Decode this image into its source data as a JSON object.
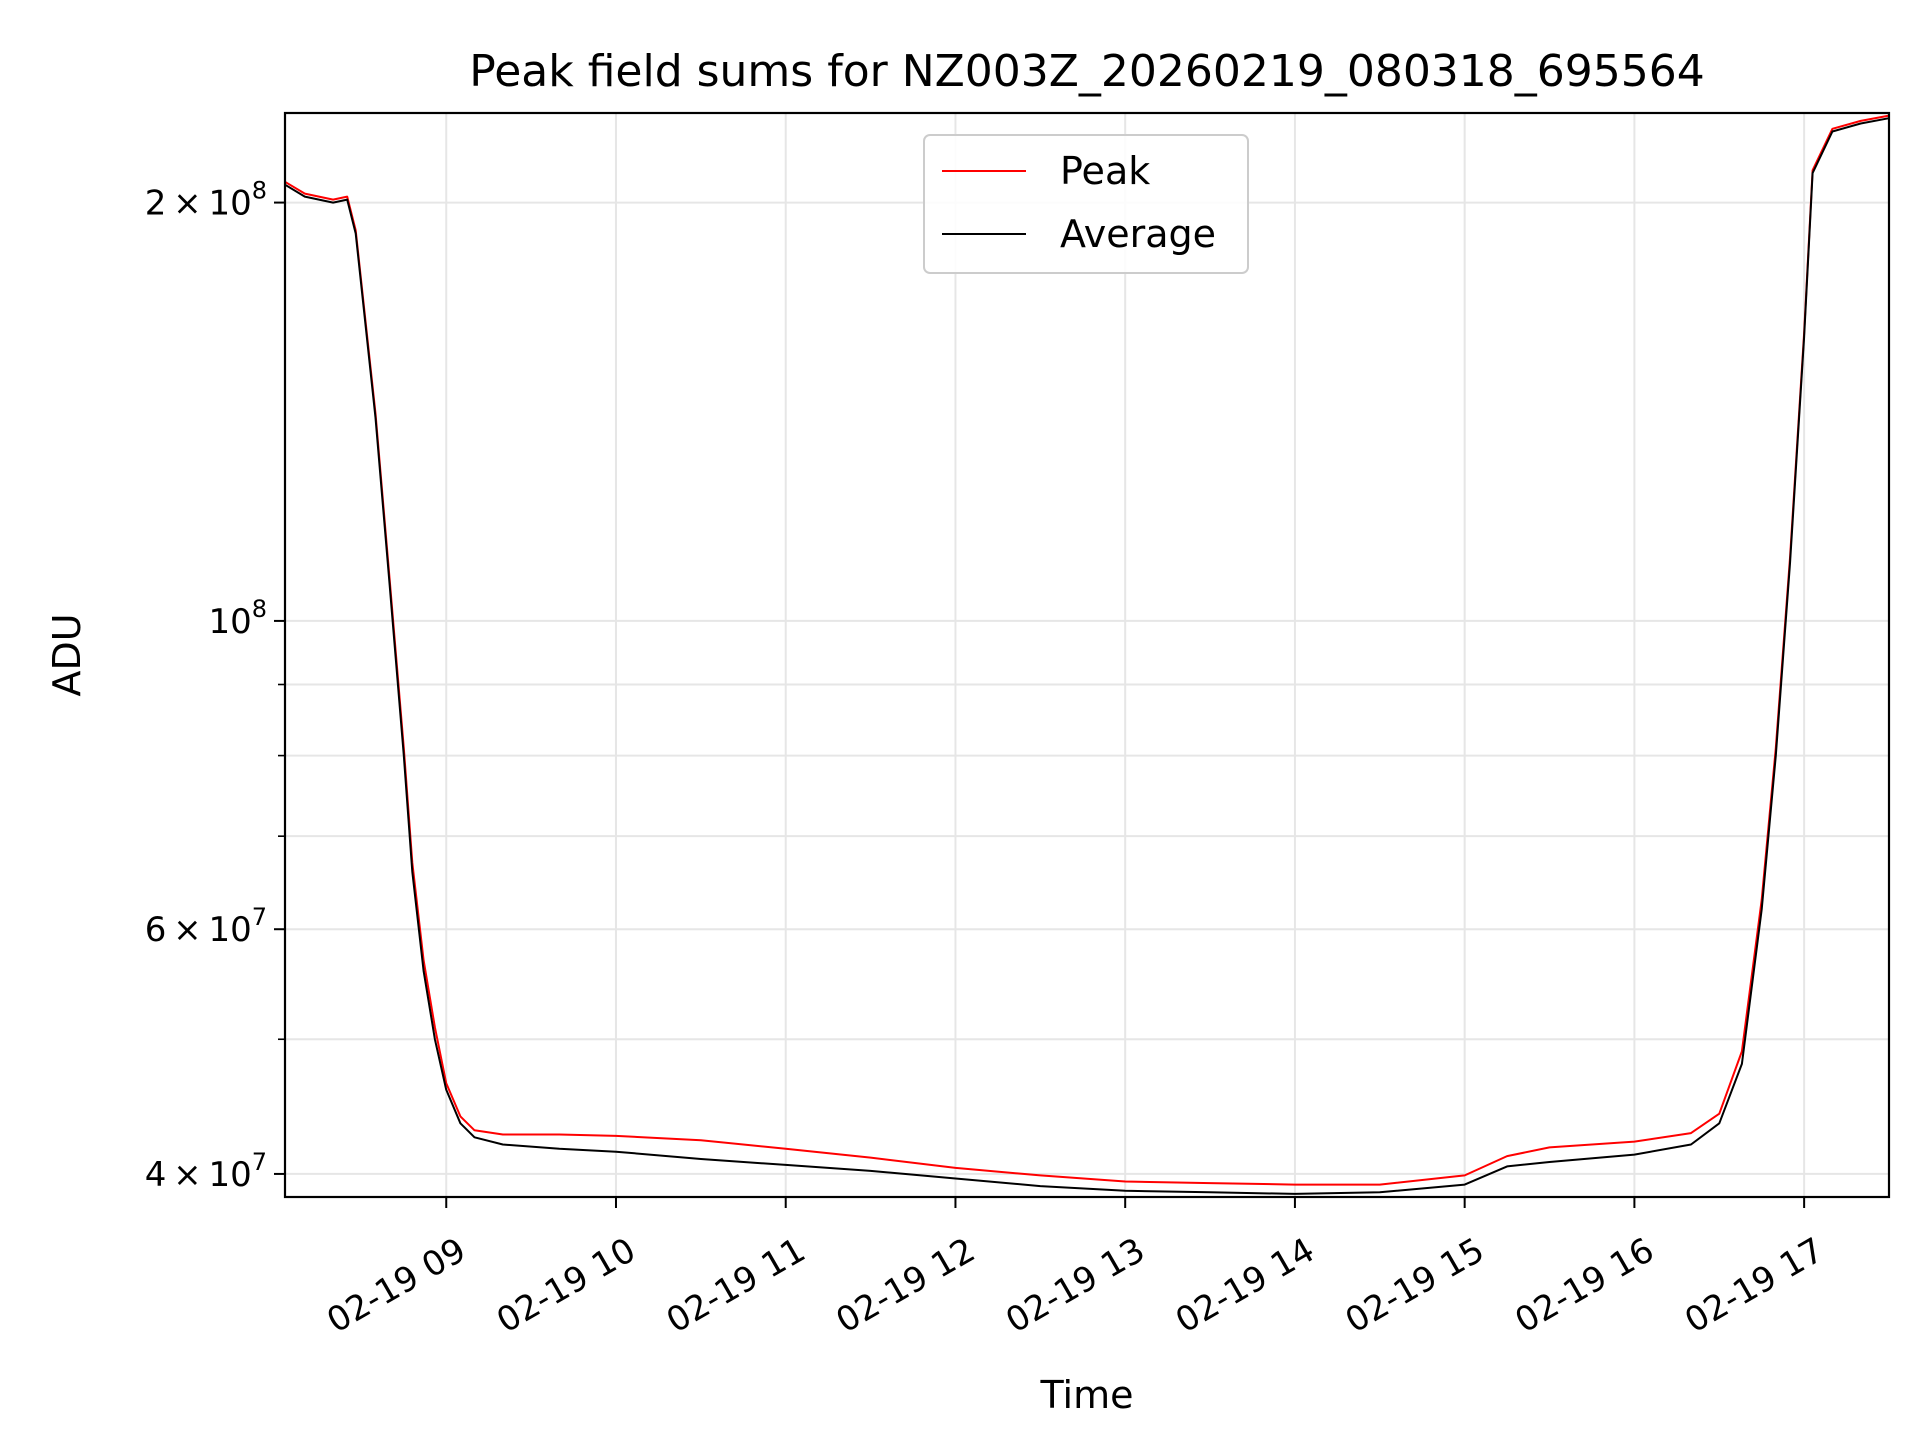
{
  "chart_data": {
    "type": "line",
    "title": "Peak field sums for NZ003Z_20260219_080318_695564",
    "xlabel": "Time",
    "ylabel": "ADU",
    "xlim": [
      "2026-02-19 08:03",
      "2026-02-19 17:30"
    ],
    "ylim": [
      38500000,
      232000000
    ],
    "yscale": "log",
    "grid": true,
    "legend": {
      "placement": "upper-center",
      "entries": [
        "Peak",
        "Average"
      ]
    },
    "x_ticks": [
      "02-19 09",
      "02-19 10",
      "02-19 11",
      "02-19 12",
      "02-19 13",
      "02-19 14",
      "02-19 15",
      "02-19 16",
      "02-19 17"
    ],
    "y_major_ticks": [
      {
        "value": 40000000,
        "mantissa": "4",
        "exponent": "7"
      },
      {
        "value": 60000000,
        "mantissa": "6",
        "exponent": "7"
      },
      {
        "value": 100000000,
        "mantissa": "",
        "exponent": "8"
      },
      {
        "value": 200000000,
        "mantissa": "2",
        "exponent": "8"
      }
    ],
    "y_minor_ticks": [
      50000000,
      70000000,
      80000000,
      90000000
    ],
    "series": [
      {
        "name": "Average",
        "color": "#000000",
        "x": [
          "2026-02-19 08:03",
          "2026-02-19 08:10",
          "2026-02-19 08:20",
          "2026-02-19 08:25",
          "2026-02-19 08:28",
          "2026-02-19 08:35",
          "2026-02-19 08:40",
          "2026-02-19 08:45",
          "2026-02-19 08:48",
          "2026-02-19 08:52",
          "2026-02-19 08:56",
          "2026-02-19 09:00",
          "2026-02-19 09:05",
          "2026-02-19 09:10",
          "2026-02-19 09:20",
          "2026-02-19 09:40",
          "2026-02-19 10:00",
          "2026-02-19 10:30",
          "2026-02-19 11:00",
          "2026-02-19 11:30",
          "2026-02-19 12:00",
          "2026-02-19 12:30",
          "2026-02-19 13:00",
          "2026-02-19 13:30",
          "2026-02-19 14:00",
          "2026-02-19 14:30",
          "2026-02-19 15:00",
          "2026-02-19 15:15",
          "2026-02-19 15:30",
          "2026-02-19 16:00",
          "2026-02-19 16:20",
          "2026-02-19 16:30",
          "2026-02-19 16:38",
          "2026-02-19 16:45",
          "2026-02-19 16:50",
          "2026-02-19 16:55",
          "2026-02-19 17:00",
          "2026-02-19 17:03",
          "2026-02-19 17:10",
          "2026-02-19 17:20",
          "2026-02-19 17:30"
        ],
        "values": [
          206000000,
          202000000,
          200000000,
          201000000,
          190000000,
          140000000,
          106000000,
          80000000,
          66000000,
          56000000,
          50000000,
          46000000,
          43500000,
          42500000,
          42000000,
          41700000,
          41500000,
          41000000,
          40600000,
          40200000,
          39700000,
          39200000,
          38900000,
          38800000,
          38700000,
          38800000,
          39300000,
          40500000,
          40800000,
          41300000,
          42000000,
          43500000,
          48000000,
          62000000,
          80000000,
          110000000,
          160000000,
          210000000,
          225000000,
          228000000,
          230000000
        ]
      },
      {
        "name": "Peak",
        "color": "#ff0000",
        "x": [
          "2026-02-19 08:03",
          "2026-02-19 08:10",
          "2026-02-19 08:20",
          "2026-02-19 08:25",
          "2026-02-19 08:28",
          "2026-02-19 08:35",
          "2026-02-19 08:40",
          "2026-02-19 08:45",
          "2026-02-19 08:48",
          "2026-02-19 08:52",
          "2026-02-19 08:56",
          "2026-02-19 09:00",
          "2026-02-19 09:05",
          "2026-02-19 09:10",
          "2026-02-19 09:20",
          "2026-02-19 09:40",
          "2026-02-19 10:00",
          "2026-02-19 10:30",
          "2026-02-19 11:00",
          "2026-02-19 11:30",
          "2026-02-19 12:00",
          "2026-02-19 12:30",
          "2026-02-19 13:00",
          "2026-02-19 13:30",
          "2026-02-19 14:00",
          "2026-02-19 14:30",
          "2026-02-19 15:00",
          "2026-02-19 15:15",
          "2026-02-19 15:30",
          "2026-02-19 16:00",
          "2026-02-19 16:20",
          "2026-02-19 16:30",
          "2026-02-19 16:38",
          "2026-02-19 16:45",
          "2026-02-19 16:50",
          "2026-02-19 16:55",
          "2026-02-19 17:00",
          "2026-02-19 17:03",
          "2026-02-19 17:10",
          "2026-02-19 17:20",
          "2026-02-19 17:30"
        ],
        "values": [
          207000000,
          203000000,
          201000000,
          202000000,
          191000000,
          141000000,
          107000000,
          81000000,
          67000000,
          57000000,
          51000000,
          46500000,
          44000000,
          43000000,
          42700000,
          42700000,
          42600000,
          42300000,
          41700000,
          41100000,
          40400000,
          39900000,
          39500000,
          39400000,
          39300000,
          39300000,
          39900000,
          41200000,
          41800000,
          42200000,
          42800000,
          44200000,
          49000000,
          63000000,
          81000000,
          111000000,
          161000000,
          211000000,
          226000000,
          229000000,
          231000000
        ]
      }
    ]
  }
}
